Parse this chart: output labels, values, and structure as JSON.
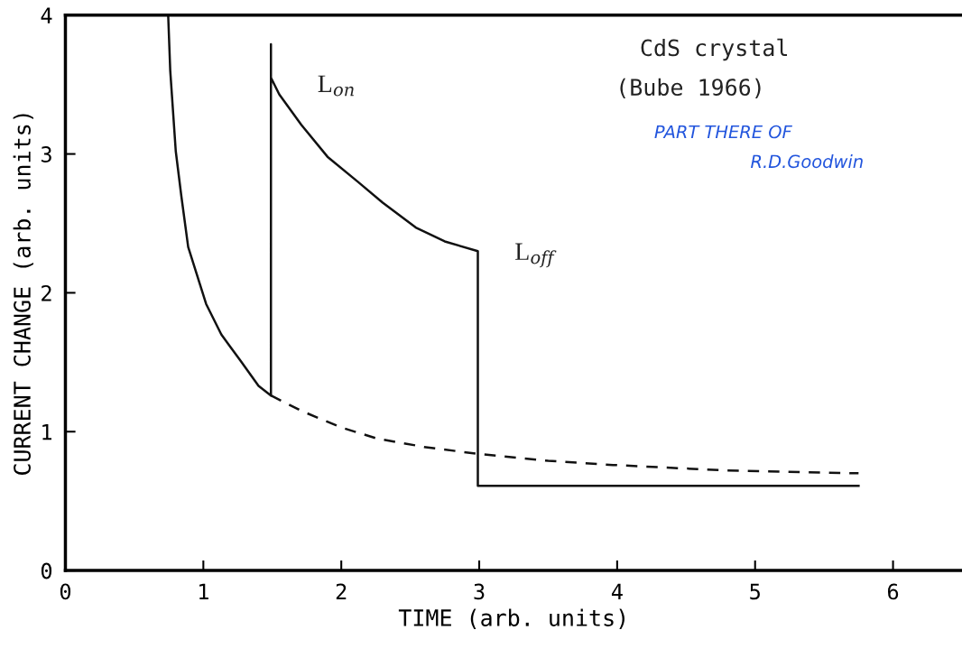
{
  "chart_data": {
    "type": "line",
    "xlabel": "TIME (arb. units)",
    "ylabel": "CURRENT CHANGE (arb. units)",
    "xlim": [
      0,
      6.5
    ],
    "ylim": [
      0,
      4
    ],
    "xticks": [
      0,
      1,
      2,
      3,
      4,
      5,
      6
    ],
    "yticks": [
      0,
      1,
      2,
      3,
      4
    ],
    "grid": false,
    "marker": "none",
    "series": [
      {
        "color": "#111111",
        "line_style": "solid",
        "x": [
          0.745,
          0.76,
          0.8,
          0.84,
          0.89,
          1.02,
          1.13,
          1.27,
          1.4,
          1.49,
          1.49,
          1.49,
          1.55,
          1.71,
          1.9,
          2.12,
          2.3,
          2.54,
          2.75,
          2.99,
          2.99,
          5.75
        ],
        "values": [
          4.0,
          3.6,
          3.02,
          2.7,
          2.33,
          1.92,
          1.7,
          1.51,
          1.33,
          1.26,
          3.79,
          3.55,
          3.43,
          3.21,
          2.98,
          2.8,
          2.65,
          2.47,
          2.37,
          2.3,
          0.61,
          0.61
        ]
      },
      {
        "color": "#111111",
        "line_style": "dashed",
        "x": [
          1.49,
          1.71,
          2.0,
          2.26,
          2.6,
          2.99,
          3.5,
          3.97,
          4.8,
          5.75
        ],
        "values": [
          1.26,
          1.15,
          1.03,
          0.95,
          0.89,
          0.84,
          0.79,
          0.76,
          0.72,
          0.7
        ]
      }
    ],
    "annotations": [
      "L$_{on}$",
      "L$_{off}$",
      "CdS crystal",
      "(Bube 1966)",
      "PART THERE OF",
      "R.D.Goodwin"
    ]
  }
}
